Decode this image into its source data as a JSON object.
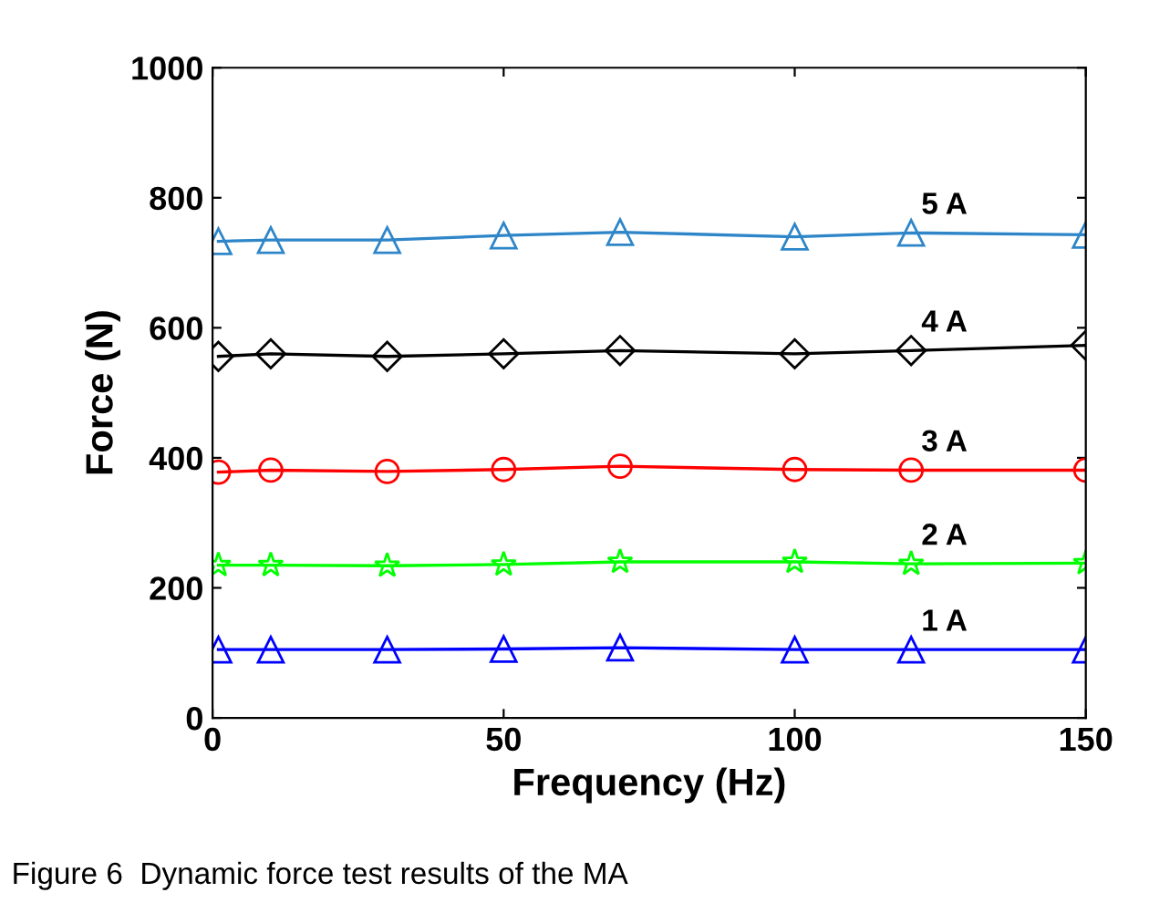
{
  "chart_data": {
    "type": "line",
    "xlabel": "Frequency (Hz)",
    "ylabel": "Force (N)",
    "x": [
      1,
      10,
      30,
      50,
      70,
      100,
      120,
      150
    ],
    "series": [
      {
        "name": "5 A",
        "color": "#2e86c9",
        "marker": "triangle",
        "values": [
          733,
          735,
          735,
          742,
          747,
          740,
          746,
          743
        ]
      },
      {
        "name": "4 A",
        "color": "#000000",
        "marker": "diamond",
        "values": [
          556,
          560,
          556,
          560,
          565,
          560,
          565,
          573
        ]
      },
      {
        "name": "3 A",
        "color": "#ff0000",
        "marker": "circle",
        "values": [
          378,
          381,
          379,
          382,
          387,
          382,
          381,
          381
        ]
      },
      {
        "name": "2 A",
        "color": "#00ff00",
        "marker": "star",
        "values": [
          235,
          235,
          234,
          236,
          240,
          240,
          237,
          238
        ]
      },
      {
        "name": "1 A",
        "color": "#0000ff",
        "marker": "triangle",
        "values": [
          105,
          105,
          105,
          106,
          108,
          105,
          105,
          105
        ]
      }
    ],
    "xlim": [
      0,
      150
    ],
    "ylim": [
      0,
      1000
    ],
    "xticks": [
      0,
      50,
      100,
      150
    ],
    "yticks": [
      0,
      200,
      400,
      600,
      800,
      1000
    ],
    "grid": false,
    "legend": false,
    "annotations": [
      "Figure 6  Dynamic force test results of the MA"
    ]
  }
}
